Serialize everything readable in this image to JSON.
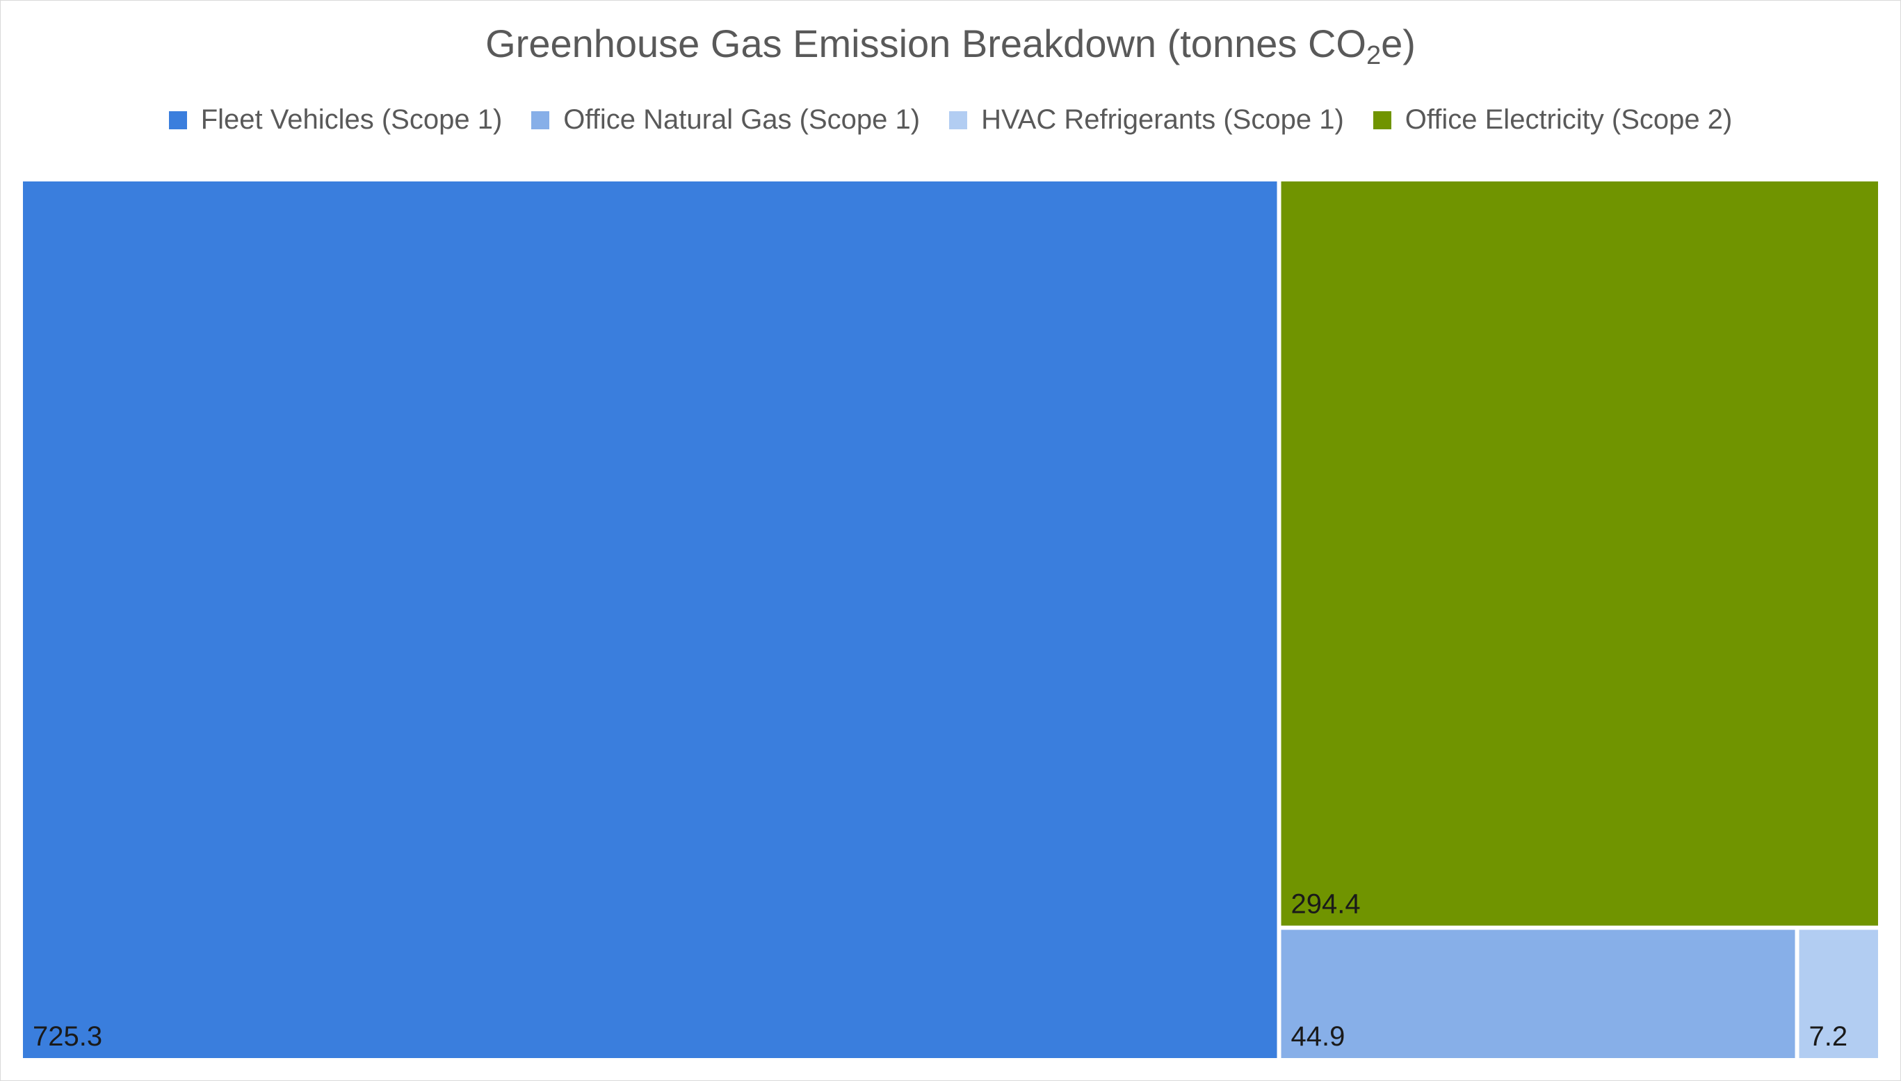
{
  "chart_data": {
    "type": "treemap",
    "title": "Greenhouse Gas Emission Breakdown (tonnes CO",
    "title_subscript": "2",
    "title_suffix": "e)",
    "units": "tonnes CO2e",
    "legend_position": "top",
    "series": [
      {
        "name": "Fleet Vehicles (Scope 1)",
        "value": 725.3,
        "label": "725.3",
        "color": "#3A7EDD"
      },
      {
        "name": "Office Natural Gas (Scope 1)",
        "value": 44.9,
        "label": "44.9",
        "color": "#87AFE8"
      },
      {
        "name": "HVAC Refrigerants (Scope 1)",
        "value": 7.2,
        "label": "7.2",
        "color": "#B2CDF2"
      },
      {
        "name": "Office Electricity (Scope 2)",
        "value": 294.4,
        "label": "294.4",
        "color": "#709400"
      }
    ]
  }
}
